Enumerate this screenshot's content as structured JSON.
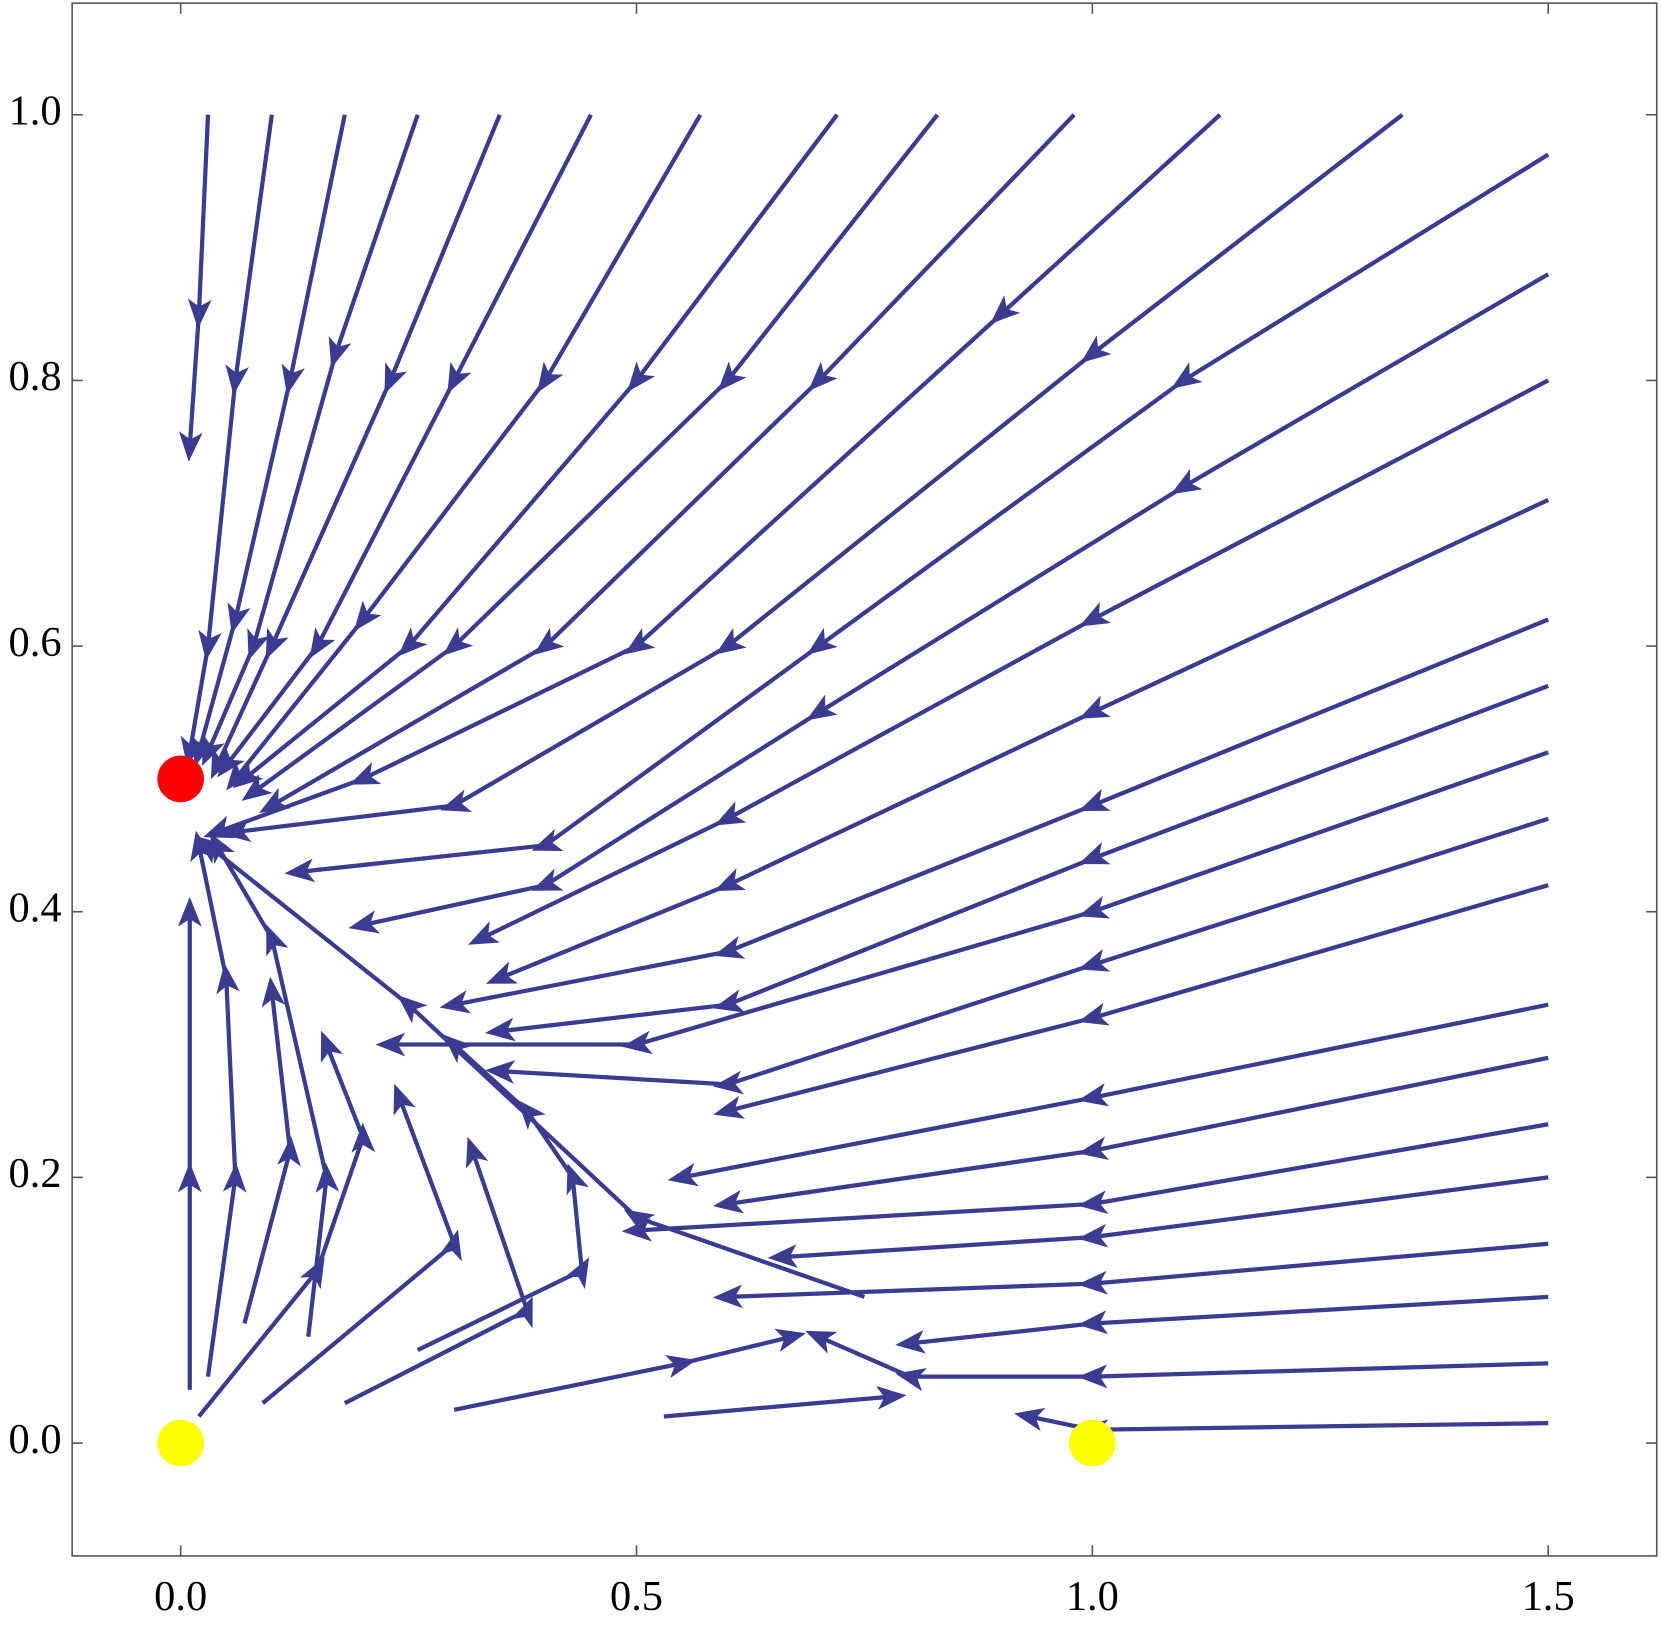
{
  "chart_data": {
    "type": "streamplot",
    "xlim": [
      -0.119,
      1.619
    ],
    "ylim": [
      -0.085,
      1.084
    ],
    "xticks": [
      {
        "value": 0,
        "label": "0.0"
      },
      {
        "value": 0.5,
        "label": "0.5"
      },
      {
        "value": 1,
        "label": "1.0"
      },
      {
        "value": 1.5,
        "label": "1.5"
      }
    ],
    "yticks": [
      {
        "value": 0,
        "label": "0.0"
      },
      {
        "value": 0.2,
        "label": "0.2"
      },
      {
        "value": 0.4,
        "label": "0.4"
      },
      {
        "value": 0.6,
        "label": "0.6"
      },
      {
        "value": 0.8,
        "label": "0.8"
      },
      {
        "value": 1,
        "label": "1.0"
      }
    ],
    "stream_color": "#3a3c91",
    "streamlines": [
      {
        "x": [
          0.03,
          0.02,
          0.01
        ],
        "y": [
          1.0,
          0.85,
          0.75
        ]
      },
      {
        "x": [
          0.1,
          0.06,
          0.03,
          0.01
        ],
        "y": [
          1.0,
          0.8,
          0.6,
          0.52
        ]
      },
      {
        "x": [
          0.18,
          0.12,
          0.06,
          0.02
        ],
        "y": [
          1.0,
          0.8,
          0.62,
          0.52
        ]
      },
      {
        "x": [
          0.26,
          0.17,
          0.08,
          0.03
        ],
        "y": [
          1.0,
          0.82,
          0.6,
          0.52
        ]
      },
      {
        "x": [
          0.35,
          0.23,
          0.1,
          0.04
        ],
        "y": [
          1.0,
          0.8,
          0.6,
          0.51
        ]
      },
      {
        "x": [
          0.45,
          0.3,
          0.15,
          0.05
        ],
        "y": [
          1.0,
          0.8,
          0.6,
          0.51
        ]
      },
      {
        "x": [
          0.57,
          0.4,
          0.2,
          0.06
        ],
        "y": [
          1.0,
          0.8,
          0.62,
          0.5
        ]
      },
      {
        "x": [
          0.72,
          0.5,
          0.25,
          0.07
        ],
        "y": [
          1.0,
          0.8,
          0.6,
          0.5
        ]
      },
      {
        "x": [
          0.83,
          0.6,
          0.3,
          0.08
        ],
        "y": [
          1.0,
          0.8,
          0.6,
          0.49
        ]
      },
      {
        "x": [
          0.98,
          0.7,
          0.4,
          0.1
        ],
        "y": [
          1.0,
          0.8,
          0.6,
          0.48
        ]
      },
      {
        "x": [
          1.14,
          0.9,
          0.5,
          0.2,
          0.04
        ],
        "y": [
          1.0,
          0.85,
          0.6,
          0.5,
          0.46
        ]
      },
      {
        "x": [
          1.34,
          1.0,
          0.6,
          0.3,
          0.06
        ],
        "y": [
          1.0,
          0.82,
          0.6,
          0.48,
          0.46
        ]
      },
      {
        "x": [
          1.5,
          1.1,
          0.7,
          0.4,
          0.13
        ],
        "y": [
          0.97,
          0.8,
          0.6,
          0.45,
          0.43
        ]
      },
      {
        "x": [
          1.5,
          1.1,
          0.7,
          0.4,
          0.2
        ],
        "y": [
          0.88,
          0.72,
          0.55,
          0.42,
          0.39
        ]
      },
      {
        "x": [
          1.5,
          1.0,
          0.6,
          0.33
        ],
        "y": [
          0.8,
          0.62,
          0.47,
          0.38
        ]
      },
      {
        "x": [
          1.5,
          1.0,
          0.6,
          0.35
        ],
        "y": [
          0.71,
          0.55,
          0.42,
          0.35
        ]
      },
      {
        "x": [
          1.5,
          1.0,
          0.6,
          0.3
        ],
        "y": [
          0.62,
          0.48,
          0.37,
          0.33
        ]
      },
      {
        "x": [
          1.5,
          1.0,
          0.6,
          0.35
        ],
        "y": [
          0.57,
          0.44,
          0.33,
          0.31
        ]
      },
      {
        "x": [
          1.5,
          1.0,
          0.5,
          0.23
        ],
        "y": [
          0.52,
          0.4,
          0.3,
          0.3
        ]
      },
      {
        "x": [
          1.5,
          1.0,
          0.6,
          0.35
        ],
        "y": [
          0.47,
          0.36,
          0.27,
          0.28
        ]
      },
      {
        "x": [
          1.5,
          1.0,
          0.6
        ],
        "y": [
          0.42,
          0.32,
          0.25
        ]
      },
      {
        "x": [
          1.5,
          1.0,
          0.55
        ],
        "y": [
          0.33,
          0.26,
          0.2
        ]
      },
      {
        "x": [
          1.5,
          1.0,
          0.6
        ],
        "y": [
          0.29,
          0.22,
          0.18
        ]
      },
      {
        "x": [
          1.5,
          1.0,
          0.5
        ],
        "y": [
          0.24,
          0.18,
          0.16
        ]
      },
      {
        "x": [
          1.5,
          1.0,
          0.66
        ],
        "y": [
          0.2,
          0.155,
          0.14
        ]
      },
      {
        "x": [
          1.5,
          1.0,
          0.6
        ],
        "y": [
          0.15,
          0.12,
          0.11
        ]
      },
      {
        "x": [
          1.5,
          1.0,
          0.8
        ],
        "y": [
          0.11,
          0.09,
          0.075
        ]
      },
      {
        "x": [
          1.5,
          1.0,
          0.8,
          0.7
        ],
        "y": [
          0.06,
          0.05,
          0.05,
          0.08
        ]
      },
      {
        "x": [
          1.5,
          1.0,
          0.93
        ],
        "y": [
          0.015,
          0.01,
          0.02
        ]
      },
      {
        "x": [
          0.75,
          0.5,
          0.25,
          0.03
        ],
        "y": [
          0.11,
          0.17,
          0.33,
          0.45
        ]
      },
      {
        "x": [
          0.01,
          0.01,
          0.01
        ],
        "y": [
          0.04,
          0.2,
          0.4
        ]
      },
      {
        "x": [
          0.03,
          0.06,
          0.05,
          0.02
        ],
        "y": [
          0.05,
          0.2,
          0.35,
          0.45
        ]
      },
      {
        "x": [
          0.07,
          0.12,
          0.1
        ],
        "y": [
          0.09,
          0.22,
          0.34
        ]
      },
      {
        "x": [
          0.14,
          0.16,
          0.1,
          0.04
        ],
        "y": [
          0.08,
          0.2,
          0.38,
          0.45
        ]
      },
      {
        "x": [
          0.02,
          0.15,
          0.2,
          0.16
        ],
        "y": [
          0.02,
          0.13,
          0.23,
          0.3
        ]
      },
      {
        "x": [
          0.09,
          0.3,
          0.24
        ],
        "y": [
          0.03,
          0.15,
          0.26
        ]
      },
      {
        "x": [
          0.18,
          0.38,
          0.32
        ],
        "y": [
          0.03,
          0.1,
          0.22
        ]
      },
      {
        "x": [
          0.3,
          0.55,
          0.67
        ],
        "y": [
          0.025,
          0.06,
          0.08
        ]
      },
      {
        "x": [
          0.53,
          0.78
        ],
        "y": [
          0.02,
          0.035
        ]
      },
      {
        "x": [
          0.26,
          0.44,
          0.43,
          0.38,
          0.3
        ],
        "y": [
          0.07,
          0.13,
          0.2,
          0.25,
          0.3
        ]
      }
    ],
    "points": {
      "x": [
        0,
        0,
        1
      ],
      "y": [
        0.5,
        0,
        0
      ],
      "colors": [
        "#ff0000",
        "#ffff00",
        "#ffff00"
      ]
    }
  }
}
